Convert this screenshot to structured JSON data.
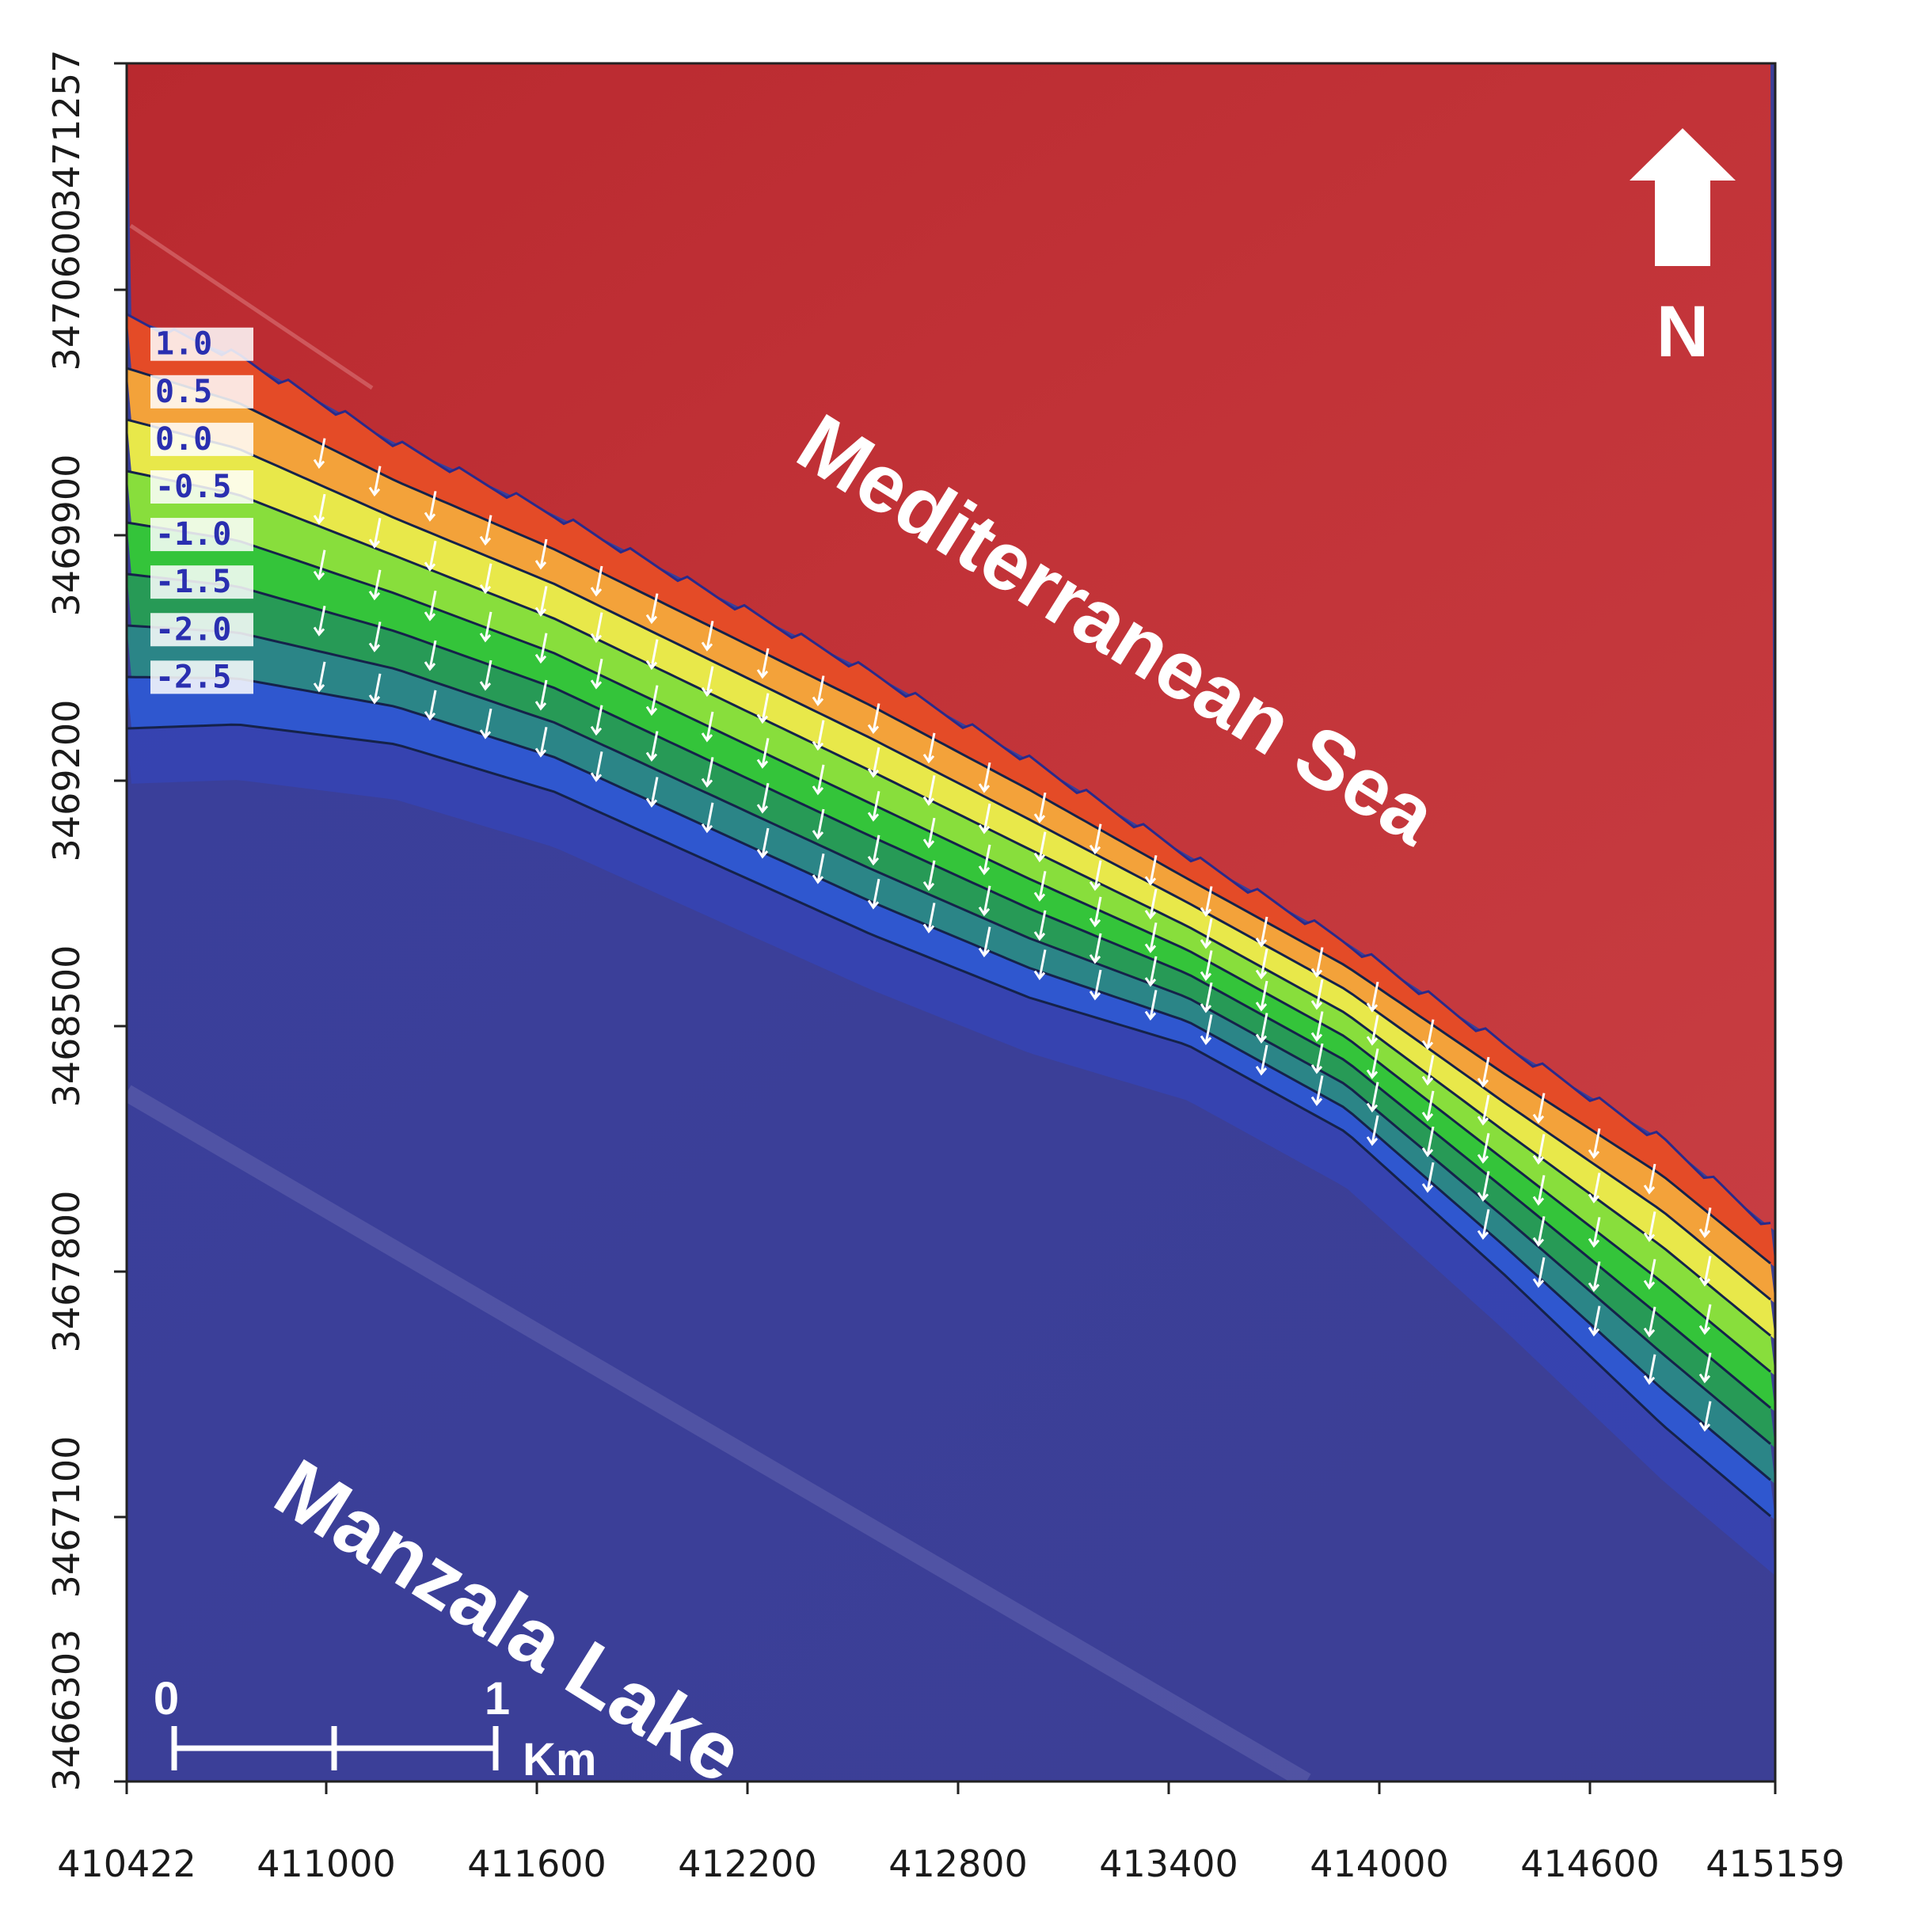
{
  "map": {
    "x_ticks": [
      "410422",
      "411000",
      "411600",
      "412200",
      "412800",
      "413400",
      "414000",
      "414600",
      "415159"
    ],
    "y_ticks": [
      "3471257",
      "3470600",
      "3469900",
      "3469200",
      "3468500",
      "3467800",
      "3467100",
      "3466303"
    ],
    "sea_label": "Mediterranean Sea",
    "lake_label": "Manzala Lake",
    "north_label": "N",
    "scale_bar": {
      "start_label": "0",
      "end_label": "1",
      "unit": "Km"
    },
    "contour_labels": [
      "1.0",
      "0.5",
      "0.0",
      "-0.5",
      "-1.0",
      "-1.5",
      "-2.0",
      "-2.5"
    ],
    "colors": {
      "sea": "#bf3136",
      "land": "#3b3f9a",
      "contour_line": "#15224a",
      "arrows": "#ffffff"
    }
  }
}
